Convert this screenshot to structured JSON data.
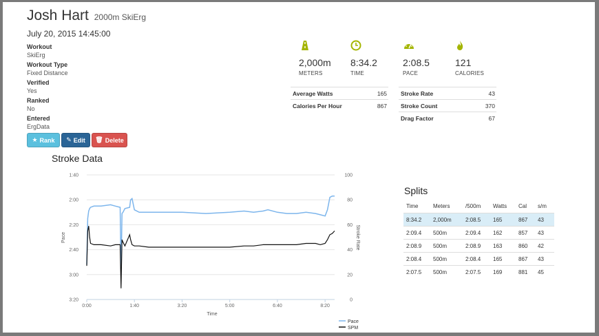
{
  "athlete": {
    "name": "Josh Hart",
    "subtitle": "2000m SkiErg"
  },
  "workout_datetime": "July 20, 2015 14:45:00",
  "details": [
    {
      "label": "Workout",
      "value": "SkiErg"
    },
    {
      "label": "Workout Type",
      "value": "Fixed Distance"
    },
    {
      "label": "Verified",
      "value": "Yes"
    },
    {
      "label": "Ranked",
      "value": "No"
    },
    {
      "label": "Entered",
      "value": "ErgData"
    }
  ],
  "buttons": {
    "rank": "Rank",
    "edit": "Edit",
    "delete": "Delete"
  },
  "summary": [
    {
      "icon": "road-icon",
      "value": "2,000m",
      "caption": "METERS"
    },
    {
      "icon": "clock-icon",
      "value": "8:34.2",
      "caption": "TIME"
    },
    {
      "icon": "speedometer-icon",
      "value": "2:08.5",
      "caption": "PACE"
    },
    {
      "icon": "flame-icon",
      "value": "121",
      "caption": "CALORIES"
    }
  ],
  "metrics_left": [
    {
      "label": "Average Watts",
      "value": "165"
    },
    {
      "label": "Calories Per Hour",
      "value": "867"
    }
  ],
  "metrics_right": [
    {
      "label": "Stroke Rate",
      "value": "43"
    },
    {
      "label": "Stroke Count",
      "value": "370"
    },
    {
      "label": "Drag Factor",
      "value": "67"
    }
  ],
  "stroke_data_title": "Stroke Data",
  "splits_title": "Splits",
  "splits": {
    "headers": [
      "Time",
      "Meters",
      "/500m",
      "Watts",
      "Cal",
      "s/m"
    ],
    "rows": [
      [
        "8:34.2",
        "2,000m",
        "2:08.5",
        "165",
        "867",
        "43"
      ],
      [
        "2:09.4",
        "500m",
        "2:09.4",
        "162",
        "857",
        "43"
      ],
      [
        "2:08.9",
        "500m",
        "2:08.9",
        "163",
        "860",
        "42"
      ],
      [
        "2:08.4",
        "500m",
        "2:08.4",
        "165",
        "867",
        "43"
      ],
      [
        "2:07.5",
        "500m",
        "2:07.5",
        "169",
        "881",
        "45"
      ]
    ]
  },
  "colors": {
    "accent_icon": "#a4b500",
    "pace_line": "#7cb5ec",
    "spm_line": "#111111",
    "highlight_row": "#d9edf7"
  },
  "chart_data": {
    "type": "line",
    "title": "Stroke Data",
    "xlabel": "Time",
    "ylabel_left": "Pace",
    "ylabel_right": "Stroke Rate",
    "x_ticks": [
      "0:00",
      "1:40",
      "3:20",
      "5:00",
      "6:40",
      "8:20"
    ],
    "x_range_seconds": [
      0,
      520
    ],
    "y_left_ticks": [
      "1:40",
      "2:00",
      "2:20",
      "2:40",
      "3:00",
      "3:20"
    ],
    "y_left_range_seconds": [
      100,
      200
    ],
    "y_left_reversed": true,
    "y_right_ticks": [
      "100",
      "80",
      "60",
      "40",
      "20",
      "0"
    ],
    "y_right_range": [
      0,
      100
    ],
    "legend": [
      "Pace",
      "SPM"
    ],
    "legend_position": "bottom-right",
    "series": [
      {
        "name": "Pace",
        "axis": "left",
        "x": [
          0,
          2,
          4,
          6,
          8,
          15,
          30,
          50,
          60,
          70,
          72,
          74,
          76,
          80,
          90,
          92,
          95,
          100,
          110,
          130,
          160,
          200,
          250,
          300,
          330,
          350,
          370,
          380,
          400,
          420,
          440,
          460,
          480,
          490,
          500,
          505,
          510,
          515,
          520
        ],
        "y": [
          172,
          135,
          129,
          127,
          126,
          125,
          125,
          124,
          125,
          126,
          180,
          131,
          130,
          127,
          126,
          120,
          119,
          128,
          130,
          130,
          130,
          130,
          131,
          130,
          129,
          130,
          129,
          128,
          130,
          131,
          131,
          130,
          131,
          132,
          133,
          128,
          118,
          117,
          117
        ]
      },
      {
        "name": "SPM",
        "axis": "right",
        "x": [
          0,
          2,
          4,
          6,
          8,
          15,
          30,
          50,
          60,
          70,
          72,
          74,
          76,
          80,
          90,
          92,
          95,
          100,
          110,
          130,
          160,
          200,
          250,
          300,
          330,
          350,
          370,
          380,
          400,
          420,
          440,
          460,
          480,
          490,
          500,
          505,
          510,
          515,
          520
        ],
        "y": [
          27,
          55,
          59,
          50,
          45,
          44,
          44,
          43,
          44,
          44,
          9,
          48,
          46,
          43,
          52,
          48,
          44,
          43,
          43,
          42,
          42,
          42,
          42,
          42,
          43,
          43,
          44,
          44,
          44,
          44,
          44,
          45,
          45,
          44,
          45,
          48,
          52,
          53,
          55
        ]
      }
    ]
  }
}
